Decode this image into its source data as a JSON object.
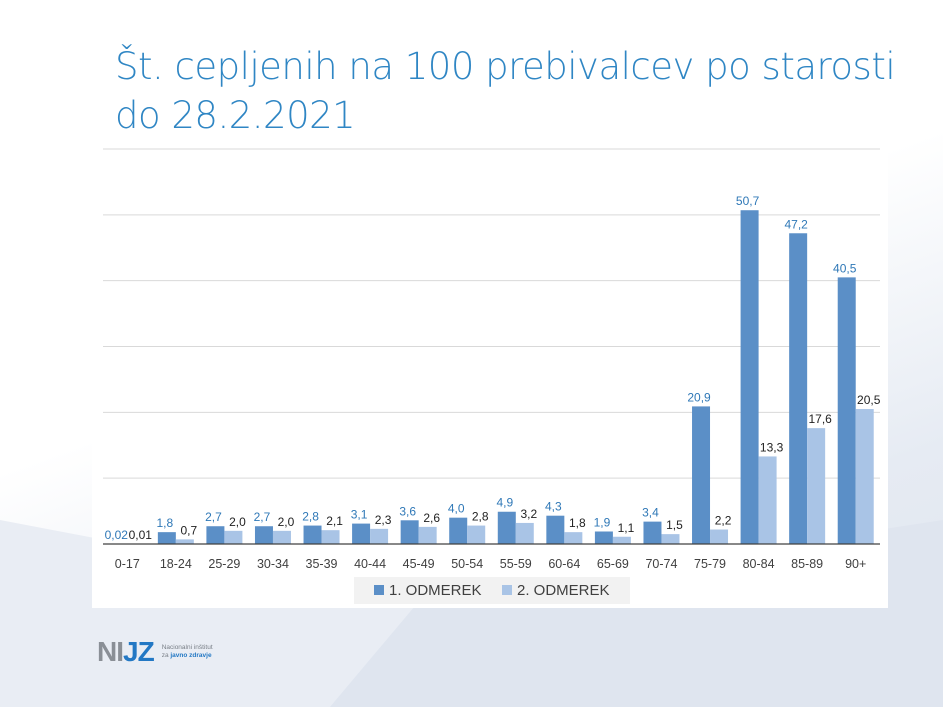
{
  "title": "Št. cepljenih na 100 prebivalcev po starosti do 28.2.2021",
  "logo": {
    "mark": "NIJZ",
    "line1": "Nacionalni inštitut",
    "line2a": "za",
    "line2b": "javno zdravje"
  },
  "colors": {
    "series1": "#5b8fc7",
    "series2": "#a9c4e6",
    "label1": "#2f78b7",
    "label2": "#222222",
    "grid": "#d9d9d9"
  },
  "chart_data": {
    "type": "bar",
    "title": "Št. cepljenih na 100 prebivalcev po starosti do 28.2.2021",
    "categories": [
      "0-17",
      "18-24",
      "25-29",
      "30-34",
      "35-39",
      "40-44",
      "45-49",
      "50-54",
      "55-59",
      "60-64",
      "65-69",
      "70-74",
      "75-79",
      "80-84",
      "85-89",
      "90+"
    ],
    "series": [
      {
        "name": "1. ODMEREK",
        "values": [
          0.02,
          1.8,
          2.7,
          2.7,
          2.8,
          3.1,
          3.6,
          4.0,
          4.9,
          4.3,
          1.9,
          3.4,
          20.9,
          50.7,
          47.2,
          40.5
        ],
        "labels": [
          "0,02",
          "1,8",
          "2,7",
          "2,7",
          "2,8",
          "3,1",
          "3,6",
          "4,0",
          "4,9",
          "4,3",
          "1,9",
          "3,4",
          "20,9",
          "50,7",
          "47,2",
          "40,5"
        ]
      },
      {
        "name": "2. ODMEREK",
        "values": [
          0.01,
          0.7,
          2.0,
          2.0,
          2.1,
          2.3,
          2.6,
          2.8,
          3.2,
          1.8,
          1.1,
          1.5,
          2.2,
          13.3,
          17.6,
          20.5
        ],
        "labels": [
          "0,01",
          "0,7",
          "2,0",
          "2,0",
          "2,1",
          "2,3",
          "2,6",
          "2,8",
          "3,2",
          "1,8",
          "1,1",
          "1,5",
          "2,2",
          "13,3",
          "17,6",
          "20,5"
        ]
      }
    ],
    "ylim": [
      0,
      60
    ],
    "grid": true,
    "legend": "bottom",
    "xlabel": "",
    "ylabel": ""
  }
}
